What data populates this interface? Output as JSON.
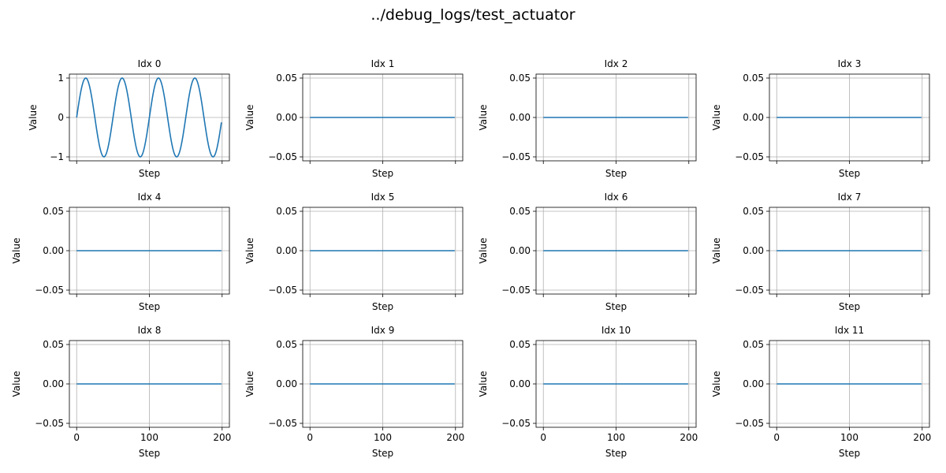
{
  "figure": {
    "title": "../debug_logs/test_actuator",
    "line_color": "#1f77b4",
    "grid_color": "#b0b0b0"
  },
  "chart_data": [
    {
      "type": "line",
      "title": "Idx 0",
      "xlabel": "Step",
      "ylabel": "Value",
      "xlim": [
        -10,
        210
      ],
      "ylim": [
        -1.1,
        1.1
      ],
      "xticks": [
        0,
        100,
        200
      ],
      "xtick_labels_visible": false,
      "yticks": [
        -1,
        0,
        1
      ],
      "ytick_labels": [
        "−1",
        "0",
        "1"
      ],
      "grid": true,
      "series": [
        {
          "function": "sin",
          "amplitude": 1,
          "period": 50,
          "x_start": 0,
          "x_end": 199,
          "num_points": 200
        }
      ]
    },
    {
      "type": "line",
      "title": "Idx 1",
      "xlabel": "Step",
      "ylabel": "Value",
      "xlim": [
        -10,
        210
      ],
      "ylim": [
        -0.055,
        0.055
      ],
      "xticks": [
        0,
        100,
        200
      ],
      "xtick_labels_visible": false,
      "yticks": [
        -0.05,
        0,
        0.05
      ],
      "ytick_labels": [
        "−0.05",
        "0.00",
        "0.05"
      ],
      "grid": true,
      "series": [
        {
          "function": "constant",
          "value": 0,
          "x_start": 0,
          "x_end": 199
        }
      ]
    },
    {
      "type": "line",
      "title": "Idx 2",
      "xlabel": "Step",
      "ylabel": "Value",
      "xlim": [
        -10,
        210
      ],
      "ylim": [
        -0.055,
        0.055
      ],
      "xticks": [
        0,
        100,
        200
      ],
      "xtick_labels_visible": false,
      "yticks": [
        -0.05,
        0,
        0.05
      ],
      "ytick_labels": [
        "−0.05",
        "0.00",
        "0.05"
      ],
      "grid": true,
      "series": [
        {
          "function": "constant",
          "value": 0,
          "x_start": 0,
          "x_end": 199
        }
      ]
    },
    {
      "type": "line",
      "title": "Idx 3",
      "xlabel": "Step",
      "ylabel": "Value",
      "xlim": [
        -10,
        210
      ],
      "ylim": [
        -0.055,
        0.055
      ],
      "xticks": [
        0,
        100,
        200
      ],
      "xtick_labels_visible": false,
      "yticks": [
        -0.05,
        0,
        0.05
      ],
      "ytick_labels": [
        "−0.05",
        "0.00",
        "0.05"
      ],
      "grid": true,
      "series": [
        {
          "function": "constant",
          "value": 0,
          "x_start": 0,
          "x_end": 199
        }
      ]
    },
    {
      "type": "line",
      "title": "Idx 4",
      "xlabel": "Step",
      "ylabel": "Value",
      "xlim": [
        -10,
        210
      ],
      "ylim": [
        -0.055,
        0.055
      ],
      "xticks": [
        0,
        100,
        200
      ],
      "xtick_labels_visible": false,
      "yticks": [
        -0.05,
        0,
        0.05
      ],
      "ytick_labels": [
        "−0.05",
        "0.00",
        "0.05"
      ],
      "grid": true,
      "series": [
        {
          "function": "constant",
          "value": 0,
          "x_start": 0,
          "x_end": 199
        }
      ]
    },
    {
      "type": "line",
      "title": "Idx 5",
      "xlabel": "Step",
      "ylabel": "Value",
      "xlim": [
        -10,
        210
      ],
      "ylim": [
        -0.055,
        0.055
      ],
      "xticks": [
        0,
        100,
        200
      ],
      "xtick_labels_visible": false,
      "yticks": [
        -0.05,
        0,
        0.05
      ],
      "ytick_labels": [
        "−0.05",
        "0.00",
        "0.05"
      ],
      "grid": true,
      "series": [
        {
          "function": "constant",
          "value": 0,
          "x_start": 0,
          "x_end": 199
        }
      ]
    },
    {
      "type": "line",
      "title": "Idx 6",
      "xlabel": "Step",
      "ylabel": "Value",
      "xlim": [
        -10,
        210
      ],
      "ylim": [
        -0.055,
        0.055
      ],
      "xticks": [
        0,
        100,
        200
      ],
      "xtick_labels_visible": false,
      "yticks": [
        -0.05,
        0,
        0.05
      ],
      "ytick_labels": [
        "−0.05",
        "0.00",
        "0.05"
      ],
      "grid": true,
      "series": [
        {
          "function": "constant",
          "value": 0,
          "x_start": 0,
          "x_end": 199
        }
      ]
    },
    {
      "type": "line",
      "title": "Idx 7",
      "xlabel": "Step",
      "ylabel": "Value",
      "xlim": [
        -10,
        210
      ],
      "ylim": [
        -0.055,
        0.055
      ],
      "xticks": [
        0,
        100,
        200
      ],
      "xtick_labels_visible": false,
      "yticks": [
        -0.05,
        0,
        0.05
      ],
      "ytick_labels": [
        "−0.05",
        "0.00",
        "0.05"
      ],
      "grid": true,
      "series": [
        {
          "function": "constant",
          "value": 0,
          "x_start": 0,
          "x_end": 199
        }
      ]
    },
    {
      "type": "line",
      "title": "Idx 8",
      "xlabel": "Step",
      "ylabel": "Value",
      "xlim": [
        -10,
        210
      ],
      "ylim": [
        -0.055,
        0.055
      ],
      "xticks": [
        0,
        100,
        200
      ],
      "xtick_labels_visible": true,
      "yticks": [
        -0.05,
        0,
        0.05
      ],
      "ytick_labels": [
        "−0.05",
        "0.00",
        "0.05"
      ],
      "grid": true,
      "series": [
        {
          "function": "constant",
          "value": 0,
          "x_start": 0,
          "x_end": 199
        }
      ]
    },
    {
      "type": "line",
      "title": "Idx 9",
      "xlabel": "Step",
      "ylabel": "Value",
      "xlim": [
        -10,
        210
      ],
      "ylim": [
        -0.055,
        0.055
      ],
      "xticks": [
        0,
        100,
        200
      ],
      "xtick_labels_visible": true,
      "yticks": [
        -0.05,
        0,
        0.05
      ],
      "ytick_labels": [
        "−0.05",
        "0.00",
        "0.05"
      ],
      "grid": true,
      "series": [
        {
          "function": "constant",
          "value": 0,
          "x_start": 0,
          "x_end": 199
        }
      ]
    },
    {
      "type": "line",
      "title": "Idx 10",
      "xlabel": "Step",
      "ylabel": "Value",
      "xlim": [
        -10,
        210
      ],
      "ylim": [
        -0.055,
        0.055
      ],
      "xticks": [
        0,
        100,
        200
      ],
      "xtick_labels_visible": true,
      "yticks": [
        -0.05,
        0,
        0.05
      ],
      "ytick_labels": [
        "−0.05",
        "0.00",
        "0.05"
      ],
      "grid": true,
      "series": [
        {
          "function": "constant",
          "value": 0,
          "x_start": 0,
          "x_end": 199
        }
      ]
    },
    {
      "type": "line",
      "title": "Idx 11",
      "xlabel": "Step",
      "ylabel": "Value",
      "xlim": [
        -10,
        210
      ],
      "ylim": [
        -0.055,
        0.055
      ],
      "xticks": [
        0,
        100,
        200
      ],
      "xtick_labels_visible": true,
      "yticks": [
        -0.05,
        0,
        0.05
      ],
      "ytick_labels": [
        "−0.05",
        "0.00",
        "0.05"
      ],
      "grid": true,
      "series": [
        {
          "function": "constant",
          "value": 0,
          "x_start": 0,
          "x_end": 199
        }
      ]
    }
  ]
}
